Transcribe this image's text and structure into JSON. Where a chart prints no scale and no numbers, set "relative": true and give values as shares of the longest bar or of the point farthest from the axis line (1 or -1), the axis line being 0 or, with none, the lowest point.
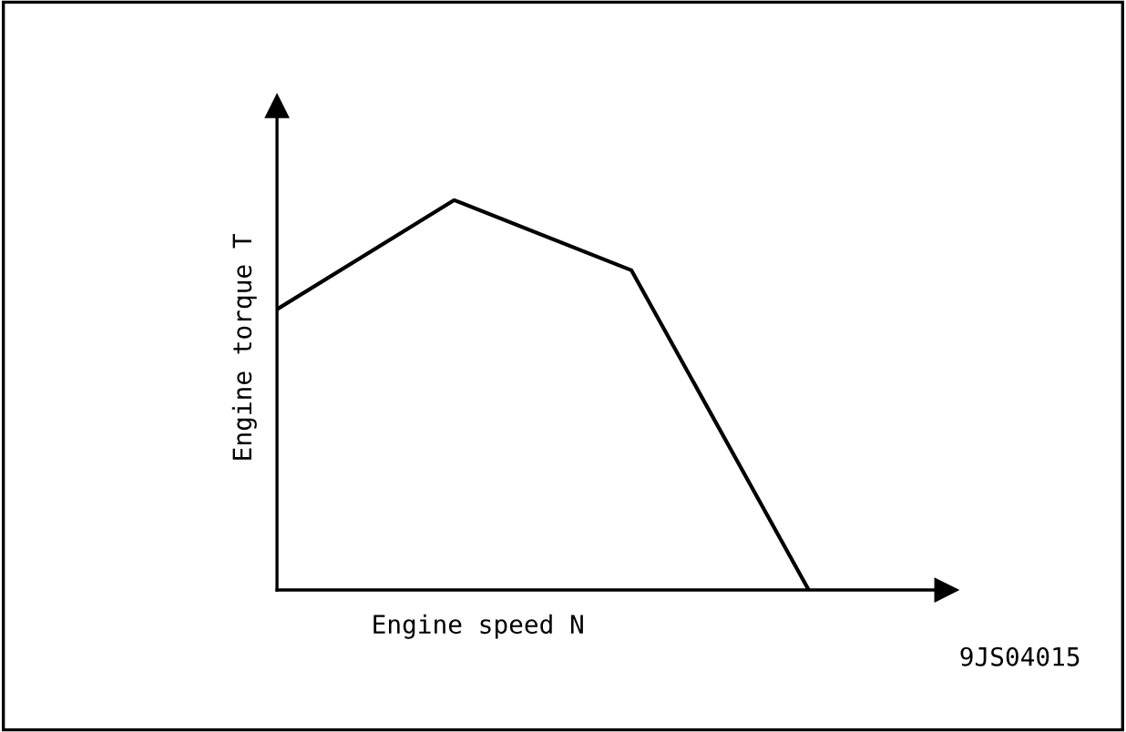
{
  "chart_data": {
    "type": "line",
    "relative": true,
    "xlabel": "Engine speed N",
    "ylabel": "Engine torque T",
    "categories": [
      null,
      null,
      null,
      null
    ],
    "series": [
      {
        "color": "#000000",
        "values": [
          0.72,
          1.0,
          0.82,
          0
        ]
      }
    ],
    "annotations": [
      "9JS04015"
    ],
    "marker": "none",
    "line_style": "solid"
  }
}
